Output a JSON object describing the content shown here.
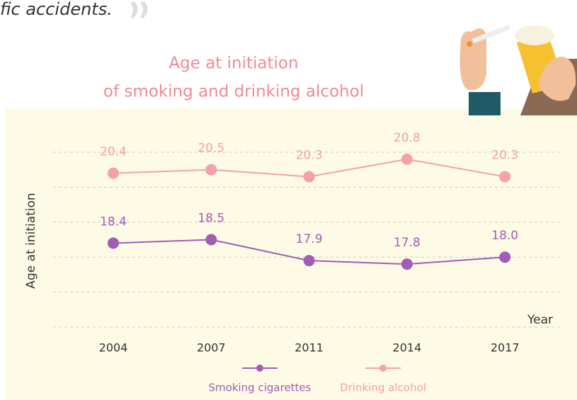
{
  "text_fragment": "fic accidents.",
  "chart_data": {
    "type": "line",
    "title": "Age at initiation",
    "subtitle": "of smoking and drinking alcohol",
    "y_label": "Age at initiation",
    "x_label": "Year",
    "categories": [
      "2004",
      "2007",
      "2011",
      "2014",
      "2017"
    ],
    "series": [
      {
        "name": "Smoking cigarettes",
        "color": "#a25cb4",
        "values": [
          18.4,
          18.5,
          17.9,
          17.8,
          18.0
        ],
        "value_labels": [
          "18.4",
          "18.5",
          "17.9",
          "17.8",
          "18.0"
        ]
      },
      {
        "name": "Drinking alcohol",
        "color": "#f3a1aa",
        "values": [
          20.4,
          20.5,
          20.3,
          20.8,
          20.3
        ],
        "value_labels": [
          "20.4",
          "20.5",
          "20.3",
          "20.8",
          "20.3"
        ]
      }
    ],
    "ylim": [
      16,
      21
    ],
    "yticks": [
      16,
      17,
      18,
      19,
      20,
      21
    ],
    "grid": true
  }
}
